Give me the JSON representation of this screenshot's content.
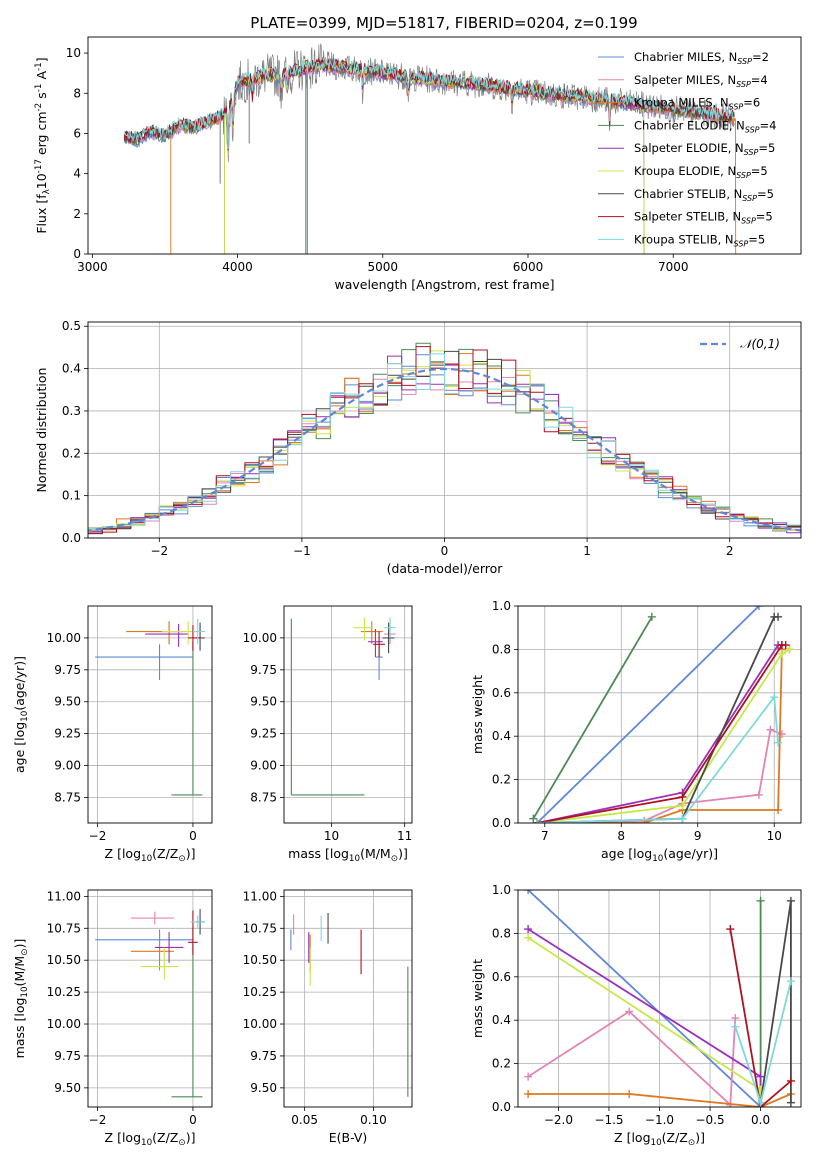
{
  "figure": {
    "title": "PLATE=0399, MJD=51817, FIBERID=0204, z=0.199"
  },
  "colors": {
    "chabrier_miles": "#5f88d8",
    "salpeter_miles": "#e384b8",
    "kroupa_miles": "#e07820",
    "chabrier_elodie": "#4d8a55",
    "salpeter_elodie": "#9a2fbc",
    "kroupa_elodie": "#c8e84a",
    "chabrier_stelib": "#484848",
    "salpeter_stelib": "#b01020",
    "kroupa_stelib": "#7fd8dc",
    "data": "#808080",
    "gaussian": "#5f88d8"
  },
  "chart_data": [
    {
      "id": "spectrum",
      "type": "line",
      "xlabel": "wavelength [Angstrom, rest frame]",
      "ylabel": "Flux [f$_\\lambda$10$^{-17}$ erg cm$^{-2}$ s$^{-1}$ A$^{-1}$]",
      "xlim": [
        2970,
        7880
      ],
      "ylim": [
        0,
        10.8
      ],
      "xticks": [
        3000,
        4000,
        5000,
        6000,
        7000
      ],
      "yticks": [
        0,
        2,
        4,
        6,
        8,
        10
      ],
      "legend_position": "top-right",
      "legend": [
        {
          "label": "Chabrier MILES, N",
          "sub": "SSP",
          "suffix": "=2",
          "color_key": "chabrier_miles"
        },
        {
          "label": "Salpeter MILES, N",
          "sub": "SSP",
          "suffix": "=4",
          "color_key": "salpeter_miles"
        },
        {
          "label": "Kroupa MILES, N",
          "sub": "SSP",
          "suffix": "=6",
          "color_key": "kroupa_miles"
        },
        {
          "label": "Chabrier ELODIE, N",
          "sub": "SSP",
          "suffix": "=4",
          "color_key": "chabrier_elodie"
        },
        {
          "label": "Salpeter ELODIE, N",
          "sub": "SSP",
          "suffix": "=5",
          "color_key": "salpeter_elodie"
        },
        {
          "label": "Kroupa ELODIE, N",
          "sub": "SSP",
          "suffix": "=5",
          "color_key": "kroupa_elodie"
        },
        {
          "label": "Chabrier STELIB, N",
          "sub": "SSP",
          "suffix": "=5",
          "color_key": "chabrier_stelib"
        },
        {
          "label": "Salpeter STELIB, N",
          "sub": "SSP",
          "suffix": "=5",
          "color_key": "salpeter_stelib"
        },
        {
          "label": "Kroupa STELIB, N",
          "sub": "SSP",
          "suffix": "=5",
          "color_key": "kroupa_stelib"
        }
      ],
      "continuum": {
        "x": [
          3220,
          3300,
          3400,
          3500,
          3600,
          3700,
          3800,
          3900,
          3950,
          4000,
          4100,
          4200,
          4300,
          4400,
          4500,
          4600,
          4800,
          5000,
          5200,
          5400,
          5600,
          5800,
          6000,
          6200,
          6400,
          6600,
          6800,
          7000,
          7200,
          7400
        ],
        "y": [
          5.8,
          5.7,
          6.1,
          5.9,
          6.4,
          6.3,
          6.6,
          6.9,
          7.3,
          8.5,
          8.7,
          8.9,
          8.9,
          9.1,
          9.3,
          9.4,
          9.2,
          9.0,
          8.8,
          8.6,
          8.5,
          8.3,
          8.1,
          7.9,
          7.8,
          7.6,
          7.4,
          7.2,
          7.0,
          6.8
        ]
      },
      "model_truncations": [
        {
          "color_key": "kroupa_miles",
          "x_start": 3540,
          "x_end": 7430
        },
        {
          "color_key": "kroupa_elodie",
          "x_start": 3910,
          "x_end": 6800
        },
        {
          "color_key": "salpeter_elodie",
          "x_start": 3910,
          "x_end": 6800
        }
      ]
    },
    {
      "id": "residual-histogram",
      "type": "histogram",
      "xlabel": "(data-model)/error",
      "ylabel": "Normed distribution",
      "xlim": [
        -2.5,
        2.5
      ],
      "ylim": [
        0,
        0.51
      ],
      "xticks": [
        -2,
        -1,
        0,
        1,
        2
      ],
      "yticks": [
        0.0,
        0.1,
        0.2,
        0.3,
        0.4,
        0.5
      ],
      "bin_width": 0.1,
      "grid": true,
      "legend_position": "top-right",
      "legend": [
        {
          "label": "$\\mathcal{N}(0,1)$",
          "style": "dashed",
          "color_key": "gaussian"
        }
      ]
    },
    {
      "id": "age-vs-Z",
      "type": "errorbar",
      "xlabel": "Z [log$_{10}$(Z/Z$_\\odot$)]",
      "ylabel": "age  [log$_{10}$(age/yr)]",
      "xlim": [
        -2.2,
        0.4
      ],
      "ylim": [
        8.55,
        10.25
      ],
      "xticks": [
        -2,
        0
      ],
      "yticks": [
        8.75,
        9.0,
        9.25,
        9.5,
        9.75,
        10.0
      ],
      "grid": true,
      "points": [
        {
          "color_key": "chabrier_miles",
          "x": -0.7,
          "xerr": [
            1.35,
            0.7
          ],
          "y": 9.85,
          "yerr": [
            0.18,
            0.1
          ]
        },
        {
          "color_key": "salpeter_miles",
          "x": -0.5,
          "xerr": [
            0.4,
            0.3
          ],
          "y": 10.05,
          "yerr": [
            0.1,
            0.08
          ]
        },
        {
          "color_key": "kroupa_miles",
          "x": -0.5,
          "xerr": [
            0.9,
            0.3
          ],
          "y": 10.05,
          "yerr": [
            0.1,
            0.08
          ]
        },
        {
          "color_key": "chabrier_elodie",
          "x": 0.0,
          "xerr": [
            0.45,
            0.2
          ],
          "y": 8.77,
          "yerr": [
            0.0,
            1.2
          ]
        },
        {
          "color_key": "salpeter_elodie",
          "x": -0.3,
          "xerr": [
            0.7,
            0.2
          ],
          "y": 10.03,
          "yerr": [
            0.1,
            0.08
          ]
        },
        {
          "color_key": "kroupa_elodie",
          "x": -0.1,
          "xerr": [
            0.55,
            0.2
          ],
          "y": 10.05,
          "yerr": [
            0.1,
            0.08
          ]
        },
        {
          "color_key": "chabrier_stelib",
          "x": 0.15,
          "xerr": [
            0.1,
            0.1
          ],
          "y": 10.0,
          "yerr": [
            0.1,
            0.12
          ]
        },
        {
          "color_key": "salpeter_stelib",
          "x": 0.0,
          "xerr": [
            0.1,
            0.15
          ],
          "y": 10.0,
          "yerr": [
            0.1,
            0.1
          ]
        },
        {
          "color_key": "kroupa_stelib",
          "x": 0.1,
          "xerr": [
            0.1,
            0.15
          ],
          "y": 10.05,
          "yerr": [
            0.1,
            0.1
          ]
        }
      ]
    },
    {
      "id": "age-vs-mass",
      "type": "errorbar",
      "xlabel": "mass [log$_{10}$(M/M$_\\odot$)]",
      "ylabel": "",
      "xlim": [
        9.35,
        11.1
      ],
      "ylim": [
        8.55,
        10.25
      ],
      "xticks": [
        10,
        11
      ],
      "yticks": [
        8.75,
        9.0,
        9.25,
        9.5,
        9.75,
        10.0
      ],
      "grid": true,
      "points": [
        {
          "color_key": "chabrier_miles",
          "x": 10.65,
          "xerr": [
            0.05,
            0.05
          ],
          "y": 9.85,
          "yerr": [
            0.18,
            0.1
          ]
        },
        {
          "color_key": "salpeter_miles",
          "x": 10.8,
          "xerr": [
            0.08,
            0.08
          ],
          "y": 10.03,
          "yerr": [
            0.08,
            0.08
          ]
        },
        {
          "color_key": "kroupa_miles",
          "x": 10.55,
          "xerr": [
            0.15,
            0.15
          ],
          "y": 10.05,
          "yerr": [
            0.1,
            0.08
          ]
        },
        {
          "color_key": "chabrier_elodie",
          "x": 9.45,
          "xerr": [
            0.0,
            1.0
          ],
          "y": 8.77,
          "yerr": [
            0.0,
            1.38
          ]
        },
        {
          "color_key": "salpeter_elodie",
          "x": 10.6,
          "xerr": [
            0.1,
            0.1
          ],
          "y": 9.97,
          "yerr": [
            0.12,
            0.1
          ]
        },
        {
          "color_key": "kroupa_elodie",
          "x": 10.45,
          "xerr": [
            0.15,
            0.1
          ],
          "y": 10.08,
          "yerr": [
            0.1,
            0.08
          ]
        },
        {
          "color_key": "chabrier_stelib",
          "x": 10.78,
          "xerr": [
            0.08,
            0.08
          ],
          "y": 10.0,
          "yerr": [
            0.12,
            0.12
          ]
        },
        {
          "color_key": "salpeter_stelib",
          "x": 10.65,
          "xerr": [
            0.08,
            0.08
          ],
          "y": 9.95,
          "yerr": [
            0.1,
            0.1
          ]
        },
        {
          "color_key": "kroupa_stelib",
          "x": 10.8,
          "xerr": [
            0.08,
            0.08
          ],
          "y": 10.08,
          "yerr": [
            0.08,
            0.08
          ]
        }
      ]
    },
    {
      "id": "weight-vs-age",
      "type": "line",
      "xlabel": "age  [log$_{10}$(age/yr)]",
      "ylabel": "mass weight",
      "xlim": [
        6.65,
        10.35
      ],
      "ylim": [
        0,
        1.0
      ],
      "xticks": [
        7,
        8,
        9,
        10
      ],
      "yticks": [
        0.0,
        0.2,
        0.4,
        0.6,
        0.8,
        1.0
      ],
      "grid": true,
      "series": [
        {
          "color_key": "chabrier_miles",
          "x": [
            6.9,
            9.8
          ],
          "y": [
            0.0,
            1.0
          ]
        },
        {
          "color_key": "salpeter_miles",
          "x": [
            6.9,
            8.3,
            8.8,
            9.8,
            9.95,
            10.1
          ],
          "y": [
            0.0,
            0.01,
            0.09,
            0.13,
            0.43,
            0.41
          ]
        },
        {
          "color_key": "kroupa_miles",
          "x": [
            6.9,
            8.3,
            8.8,
            10.05,
            10.1,
            10.2
          ],
          "y": [
            0.0,
            0.0,
            0.06,
            0.06,
            0.8,
            0.8
          ]
        },
        {
          "color_key": "chabrier_elodie",
          "x": [
            6.85,
            8.4
          ],
          "y": [
            0.02,
            0.95
          ]
        },
        {
          "color_key": "salpeter_elodie",
          "x": [
            6.9,
            8.8,
            10.05,
            10.1
          ],
          "y": [
            0.0,
            0.14,
            0.82,
            0.82
          ]
        },
        {
          "color_key": "kroupa_elodie",
          "x": [
            6.9,
            8.8,
            10.1,
            10.2
          ],
          "y": [
            0.0,
            0.08,
            0.78,
            0.8
          ]
        },
        {
          "color_key": "chabrier_stelib",
          "x": [
            6.9,
            8.8,
            10.0,
            10.05
          ],
          "y": [
            0.0,
            0.02,
            0.95,
            0.95
          ]
        },
        {
          "color_key": "salpeter_stelib",
          "x": [
            6.9,
            8.8,
            10.1,
            10.15
          ],
          "y": [
            0.0,
            0.12,
            0.82,
            0.82
          ]
        },
        {
          "color_key": "kroupa_stelib",
          "x": [
            6.9,
            8.8,
            10.0,
            10.05
          ],
          "y": [
            0.0,
            0.02,
            0.58,
            0.37
          ]
        }
      ]
    },
    {
      "id": "mass-vs-Z",
      "type": "errorbar",
      "xlabel": "Z [log$_{10}$(Z/Z$_\\odot$)]",
      "ylabel": "mass [log$_{10}$(M/M$_\\odot$)]",
      "xlim": [
        -2.2,
        0.4
      ],
      "ylim": [
        9.35,
        11.05
      ],
      "xticks": [
        -2,
        0
      ],
      "yticks": [
        9.5,
        9.75,
        10.0,
        10.25,
        10.5,
        10.75,
        11.0
      ],
      "grid": true,
      "points": [
        {
          "color_key": "chabrier_miles",
          "x": -0.7,
          "xerr": [
            1.35,
            0.7
          ],
          "y": 10.66,
          "yerr": [
            0.08,
            0.08
          ]
        },
        {
          "color_key": "salpeter_miles",
          "x": -0.8,
          "xerr": [
            0.5,
            0.4
          ],
          "y": 10.83,
          "yerr": [
            0.05,
            0.05
          ]
        },
        {
          "color_key": "kroupa_miles",
          "x": -0.7,
          "xerr": [
            0.6,
            0.3
          ],
          "y": 10.57,
          "yerr": [
            0.15,
            0.15
          ]
        },
        {
          "color_key": "chabrier_elodie",
          "x": 0.0,
          "xerr": [
            0.45,
            0.2
          ],
          "y": 9.43,
          "yerr": [
            0.0,
            1.32
          ]
        },
        {
          "color_key": "salpeter_elodie",
          "x": -0.5,
          "xerr": [
            0.3,
            0.3
          ],
          "y": 10.6,
          "yerr": [
            0.12,
            0.12
          ]
        },
        {
          "color_key": "kroupa_elodie",
          "x": -0.6,
          "xerr": [
            0.5,
            0.3
          ],
          "y": 10.45,
          "yerr": [
            0.1,
            0.15
          ]
        },
        {
          "color_key": "chabrier_stelib",
          "x": 0.15,
          "xerr": [
            0.1,
            0.1
          ],
          "y": 10.8,
          "yerr": [
            0.1,
            0.1
          ]
        },
        {
          "color_key": "salpeter_stelib",
          "x": 0.0,
          "xerr": [
            0.1,
            0.1
          ],
          "y": 10.64,
          "yerr": [
            0.1,
            0.25
          ]
        },
        {
          "color_key": "kroupa_stelib",
          "x": 0.1,
          "xerr": [
            0.15,
            0.15
          ],
          "y": 10.8,
          "yerr": [
            0.05,
            0.05
          ]
        }
      ]
    },
    {
      "id": "mass-vs-ebv",
      "type": "errorbar",
      "xlabel": "E(B-V)",
      "ylabel": "",
      "xlim": [
        0.035,
        0.128
      ],
      "ylim": [
        9.35,
        11.05
      ],
      "xticks": [
        0.05,
        0.1
      ],
      "yticks": [
        9.5,
        9.75,
        10.0,
        10.25,
        10.5,
        10.75,
        11.0
      ],
      "grid": true,
      "points": [
        {
          "color_key": "chabrier_miles",
          "x": 0.04,
          "y": 10.66,
          "yerr": [
            0.08,
            0.08
          ]
        },
        {
          "color_key": "salpeter_miles",
          "x": 0.042,
          "y": 10.78,
          "yerr": [
            0.08,
            0.08
          ]
        },
        {
          "color_key": "kroupa_miles",
          "x": 0.054,
          "y": 10.55,
          "yerr": [
            0.15,
            0.15
          ]
        },
        {
          "color_key": "chabrier_elodie",
          "x": 0.125,
          "y": 9.43,
          "yerr": [
            0.0,
            1.02
          ]
        },
        {
          "color_key": "salpeter_elodie",
          "x": 0.053,
          "y": 10.6,
          "yerr": [
            0.12,
            0.12
          ]
        },
        {
          "color_key": "kroupa_elodie",
          "x": 0.054,
          "y": 10.45,
          "yerr": [
            0.15,
            0.15
          ]
        },
        {
          "color_key": "chabrier_stelib",
          "x": 0.067,
          "y": 10.75,
          "yerr": [
            0.12,
            0.12
          ]
        },
        {
          "color_key": "salpeter_stelib",
          "x": 0.091,
          "y": 10.64,
          "yerr": [
            0.25,
            0.1
          ]
        },
        {
          "color_key": "kroupa_stelib",
          "x": 0.062,
          "y": 10.75,
          "yerr": [
            0.1,
            0.1
          ]
        }
      ]
    },
    {
      "id": "weight-vs-Z",
      "type": "line",
      "xlabel": "Z [log$_{10}$(Z/Z$_\\odot$)]",
      "ylabel": "mass weight",
      "xlim": [
        -2.4,
        0.4
      ],
      "ylim": [
        0,
        1.0
      ],
      "xticks": [
        -2.0,
        -1.5,
        -1.0,
        -0.5,
        0.0
      ],
      "yticks": [
        0.0,
        0.2,
        0.4,
        0.6,
        0.8,
        1.0
      ],
      "grid": true,
      "series": [
        {
          "color_key": "chabrier_miles",
          "x": [
            -2.3,
            0.0
          ],
          "y": [
            1.0,
            0.0
          ]
        },
        {
          "color_key": "salpeter_miles",
          "x": [
            -2.3,
            -1.3,
            -0.3,
            -0.25
          ],
          "y": [
            0.14,
            0.44,
            0.01,
            0.41
          ]
        },
        {
          "color_key": "kroupa_miles",
          "x": [
            -2.3,
            -1.3,
            0.0,
            0.3
          ],
          "y": [
            0.06,
            0.06,
            0.0,
            0.06
          ]
        },
        {
          "color_key": "chabrier_elodie",
          "x": [
            -0.0,
            -0.0
          ],
          "y": [
            0.02,
            0.95
          ]
        },
        {
          "color_key": "salpeter_elodie",
          "x": [
            -2.3,
            0.0,
            0.0
          ],
          "y": [
            0.82,
            0.14,
            0.0
          ]
        },
        {
          "color_key": "kroupa_elodie",
          "x": [
            -2.3,
            0.0,
            0.0
          ],
          "y": [
            0.78,
            0.08,
            0.0
          ]
        },
        {
          "color_key": "chabrier_stelib",
          "x": [
            0.0,
            0.3,
            0.3
          ],
          "y": [
            0.02,
            0.95,
            0.02
          ]
        },
        {
          "color_key": "salpeter_stelib",
          "x": [
            -0.3,
            0.0,
            0.3
          ],
          "y": [
            0.82,
            0.0,
            0.12
          ]
        },
        {
          "color_key": "kroupa_stelib",
          "x": [
            -0.25,
            0.0,
            0.3
          ],
          "y": [
            0.37,
            0.02,
            0.58
          ]
        }
      ]
    }
  ]
}
